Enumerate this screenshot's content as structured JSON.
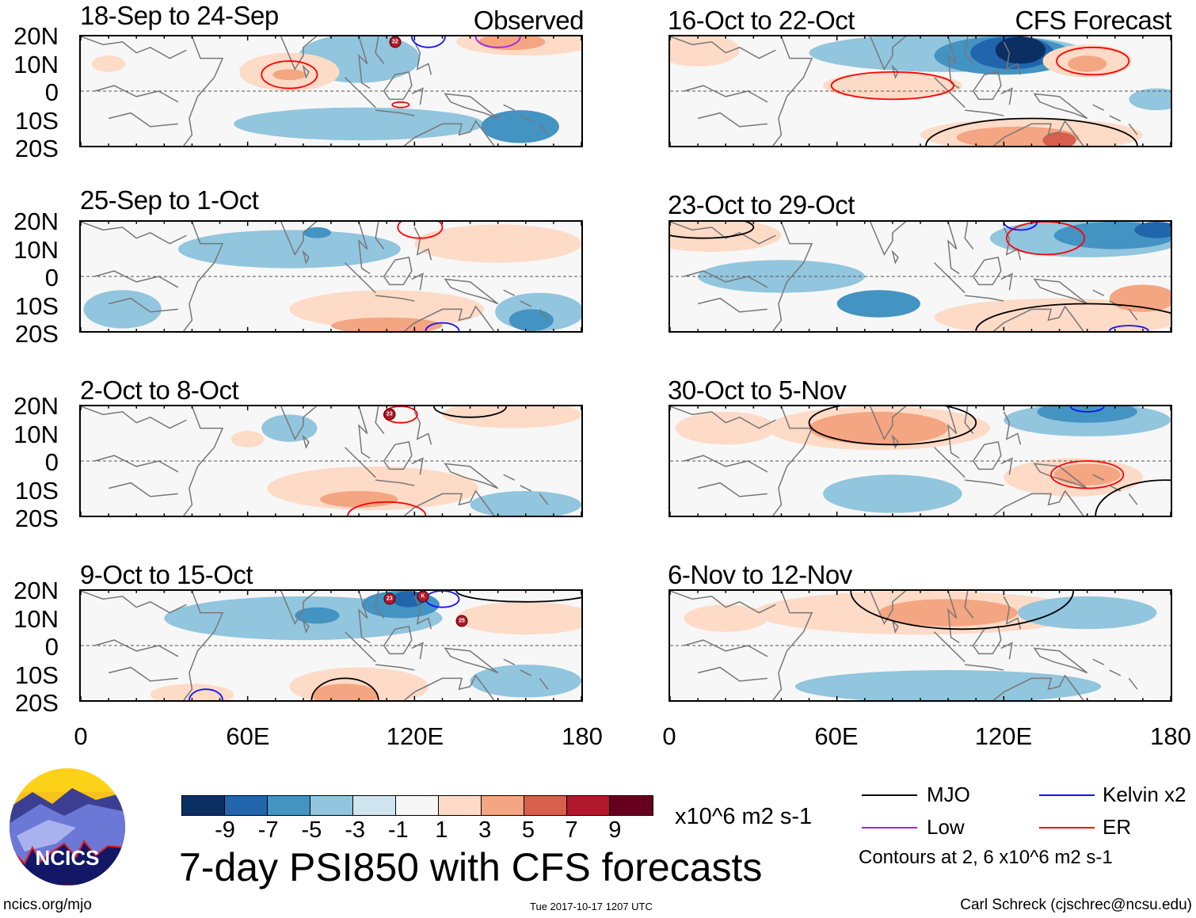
{
  "header": {
    "observed_label": "Observed",
    "forecast_label": "CFS Forecast"
  },
  "axes": {
    "lat_labels": [
      "20N",
      "10N",
      "0",
      "10S",
      "20S"
    ],
    "lon_labels": [
      "0",
      "60E",
      "120E",
      "180"
    ],
    "lon_range": [
      0,
      180
    ],
    "lat_range": [
      -20,
      20
    ]
  },
  "colors": {
    "bins": [
      "#0b2f63",
      "#2166ac",
      "#4393c3",
      "#92c5de",
      "#d1e5f0",
      "#f7f7f7",
      "#fddbc7",
      "#f4a582",
      "#d6604d",
      "#b2182b",
      "#67001f"
    ],
    "contours": {
      "MJO": "#000000",
      "Kelvin": "#1010ff",
      "Low": "#a020f0",
      "ER": "#ff0000"
    },
    "land": "#777777"
  },
  "panels": [
    {
      "title": "18-Sep to 24-Sep",
      "column": "left",
      "blobs": [
        {
          "lon": 100,
          "lat": 12,
          "rl": 22,
          "rb": 9,
          "v": -3
        },
        {
          "lon": 75,
          "lat": 7,
          "rl": 18,
          "rb": 7,
          "v": 3
        },
        {
          "lon": 75,
          "lat": 6,
          "rl": 6,
          "rb": 2,
          "v": 5
        },
        {
          "lon": 160,
          "lat": 18,
          "rl": 25,
          "rb": 5,
          "v": 3
        },
        {
          "lon": 155,
          "lat": 18,
          "rl": 12,
          "rb": 3,
          "v": 5
        },
        {
          "lon": 100,
          "lat": -12,
          "rl": 45,
          "rb": 6,
          "v": -3
        },
        {
          "lon": 158,
          "lat": -13,
          "rl": 14,
          "rb": 6,
          "v": -5
        },
        {
          "lon": 10,
          "lat": 10,
          "rl": 6,
          "rb": 3,
          "v": 3
        }
      ],
      "contours": [
        {
          "type": "ER",
          "lon": 75,
          "lat": 6,
          "rl": 10,
          "rb": 5
        },
        {
          "type": "ER",
          "lon": 115,
          "lat": -5,
          "rl": 3,
          "rb": 1
        },
        {
          "type": "Kelvin",
          "lon": 125,
          "lat": 20,
          "rl": 6,
          "rb": 4
        },
        {
          "type": "Low",
          "lon": 150,
          "lat": 20,
          "rl": 8,
          "rb": 4
        }
      ],
      "storms": [
        {
          "label": "22",
          "lon": 113,
          "lat": 18
        }
      ]
    },
    {
      "title": "16-Oct to 22-Oct",
      "column": "right",
      "blobs": [
        {
          "lon": 100,
          "lat": 14,
          "rl": 50,
          "rb": 7,
          "v": -3
        },
        {
          "lon": 120,
          "lat": 13,
          "rl": 25,
          "rb": 7,
          "v": -5
        },
        {
          "lon": 123,
          "lat": 14,
          "rl": 15,
          "rb": 6,
          "v": -7
        },
        {
          "lon": 126,
          "lat": 15,
          "rl": 9,
          "rb": 5,
          "v": -9
        },
        {
          "lon": 80,
          "lat": 2,
          "rl": 25,
          "rb": 5,
          "v": 3
        },
        {
          "lon": 150,
          "lat": 11,
          "rl": 16,
          "rb": 6,
          "v": 3
        },
        {
          "lon": 150,
          "lat": 10,
          "rl": 7,
          "rb": 3,
          "v": 5
        },
        {
          "lon": 130,
          "lat": -16,
          "rl": 40,
          "rb": 6,
          "v": 3
        },
        {
          "lon": 125,
          "lat": -17,
          "rl": 22,
          "rb": 4,
          "v": 5
        },
        {
          "lon": 140,
          "lat": -18,
          "rl": 6,
          "rb": 3,
          "v": 7
        },
        {
          "lon": 10,
          "lat": 15,
          "rl": 15,
          "rb": 6,
          "v": 3
        },
        {
          "lon": 175,
          "lat": -3,
          "rl": 10,
          "rb": 4,
          "v": -3
        }
      ],
      "contours": [
        {
          "type": "ER",
          "lon": 80,
          "lat": 2,
          "rl": 22,
          "rb": 5
        },
        {
          "type": "ER",
          "lon": 152,
          "lat": 11,
          "rl": 13,
          "rb": 5
        },
        {
          "type": "MJO",
          "lon": 130,
          "lat": -20,
          "rl": 38,
          "rb": 10
        }
      ],
      "storms": []
    },
    {
      "title": "25-Sep to 1-Oct",
      "column": "left",
      "blobs": [
        {
          "lon": 75,
          "lat": 10,
          "rl": 40,
          "rb": 7,
          "v": -3
        },
        {
          "lon": 85,
          "lat": 16,
          "rl": 5,
          "rb": 2,
          "v": -5
        },
        {
          "lon": 150,
          "lat": 12,
          "rl": 30,
          "rb": 7,
          "v": 3
        },
        {
          "lon": 110,
          "lat": -12,
          "rl": 35,
          "rb": 7,
          "v": 3
        },
        {
          "lon": 110,
          "lat": -18,
          "rl": 20,
          "rb": 3,
          "v": 5
        },
        {
          "lon": 165,
          "lat": -13,
          "rl": 16,
          "rb": 7,
          "v": -3
        },
        {
          "lon": 162,
          "lat": -16,
          "rl": 8,
          "rb": 4,
          "v": -5
        },
        {
          "lon": 15,
          "lat": -12,
          "rl": 14,
          "rb": 7,
          "v": -3
        }
      ],
      "contours": [
        {
          "type": "ER",
          "lon": 122,
          "lat": 18,
          "rl": 8,
          "rb": 4
        },
        {
          "type": "Kelvin",
          "lon": 130,
          "lat": -20,
          "rl": 6,
          "rb": 3
        }
      ],
      "storms": []
    },
    {
      "title": "23-Oct to 29-Oct",
      "column": "right",
      "blobs": [
        {
          "lon": 150,
          "lat": 14,
          "rl": 35,
          "rb": 7,
          "v": -3
        },
        {
          "lon": 160,
          "lat": 15,
          "rl": 22,
          "rb": 5,
          "v": -5
        },
        {
          "lon": 175,
          "lat": 17,
          "rl": 8,
          "rb": 3,
          "v": -7
        },
        {
          "lon": 15,
          "lat": 15,
          "rl": 25,
          "rb": 6,
          "v": 3
        },
        {
          "lon": 140,
          "lat": -15,
          "rl": 45,
          "rb": 7,
          "v": 3
        },
        {
          "lon": 170,
          "lat": -8,
          "rl": 12,
          "rb": 5,
          "v": 5
        },
        {
          "lon": 75,
          "lat": -10,
          "rl": 15,
          "rb": 5,
          "v": -5
        },
        {
          "lon": 40,
          "lat": 0,
          "rl": 30,
          "rb": 6,
          "v": -3
        }
      ],
      "contours": [
        {
          "type": "ER",
          "lon": 135,
          "lat": 14,
          "rl": 14,
          "rb": 6
        },
        {
          "type": "MJO",
          "lon": 150,
          "lat": -20,
          "rl": 40,
          "rb": 10
        },
        {
          "type": "MJO",
          "lon": 12,
          "lat": 18,
          "rl": 18,
          "rb": 4
        },
        {
          "type": "Kelvin",
          "lon": 126,
          "lat": 20,
          "rl": 6,
          "rb": 3
        },
        {
          "type": "Kelvin",
          "lon": 165,
          "lat": -20,
          "rl": 7,
          "rb": 2
        }
      ],
      "storms": []
    },
    {
      "title": "2-Oct to 8-Oct",
      "column": "left",
      "blobs": [
        {
          "lon": 155,
          "lat": 17,
          "rl": 25,
          "rb": 5,
          "v": 3
        },
        {
          "lon": 105,
          "lat": -10,
          "rl": 38,
          "rb": 8,
          "v": 3
        },
        {
          "lon": 100,
          "lat": -14,
          "rl": 14,
          "rb": 3,
          "v": 5
        },
        {
          "lon": 160,
          "lat": -16,
          "rl": 20,
          "rb": 5,
          "v": -3
        },
        {
          "lon": 75,
          "lat": 12,
          "rl": 10,
          "rb": 5,
          "v": -3
        },
        {
          "lon": 60,
          "lat": 8,
          "rl": 6,
          "rb": 3,
          "v": 3
        }
      ],
      "contours": [
        {
          "type": "ER",
          "lon": 110,
          "lat": -20,
          "rl": 14,
          "rb": 5
        },
        {
          "type": "ER",
          "lon": 115,
          "lat": 17,
          "rl": 6,
          "rb": 3
        },
        {
          "type": "MJO",
          "lon": 140,
          "lat": 20,
          "rl": 13,
          "rb": 4
        }
      ],
      "storms": [
        {
          "label": "23",
          "lon": 111,
          "lat": 17
        }
      ]
    },
    {
      "title": "30-Oct to 5-Nov",
      "column": "right",
      "blobs": [
        {
          "lon": 75,
          "lat": 12,
          "rl": 40,
          "rb": 8,
          "v": 3
        },
        {
          "lon": 75,
          "lat": 12,
          "rl": 25,
          "rb": 6,
          "v": 5
        },
        {
          "lon": 150,
          "lat": 15,
          "rl": 30,
          "rb": 6,
          "v": -3
        },
        {
          "lon": 150,
          "lat": 18,
          "rl": 18,
          "rb": 4,
          "v": -5
        },
        {
          "lon": 145,
          "lat": -6,
          "rl": 25,
          "rb": 7,
          "v": 3
        },
        {
          "lon": 150,
          "lat": -5,
          "rl": 12,
          "rb": 4,
          "v": 5
        },
        {
          "lon": 80,
          "lat": -12,
          "rl": 25,
          "rb": 7,
          "v": -3
        },
        {
          "lon": 20,
          "lat": 12,
          "rl": 18,
          "rb": 6,
          "v": 3
        }
      ],
      "contours": [
        {
          "type": "MJO",
          "lon": 80,
          "lat": 14,
          "rl": 30,
          "rb": 8
        },
        {
          "type": "ER",
          "lon": 150,
          "lat": -5,
          "rl": 13,
          "rb": 5
        },
        {
          "type": "MJO",
          "lon": 178,
          "lat": -20,
          "rl": 25,
          "rb": 13
        },
        {
          "type": "Kelvin",
          "lon": 150,
          "lat": 20,
          "rl": 6,
          "rb": 2
        }
      ],
      "storms": []
    },
    {
      "title": "9-Oct to 15-Oct",
      "column": "left",
      "blobs": [
        {
          "lon": 80,
          "lat": 10,
          "rl": 50,
          "rb": 8,
          "v": -3
        },
        {
          "lon": 85,
          "lat": 11,
          "rl": 8,
          "rb": 3,
          "v": -5
        },
        {
          "lon": 115,
          "lat": 15,
          "rl": 14,
          "rb": 5,
          "v": -5
        },
        {
          "lon": 118,
          "lat": 17,
          "rl": 6,
          "rb": 3,
          "v": -7
        },
        {
          "lon": 160,
          "lat": 10,
          "rl": 25,
          "rb": 6,
          "v": 3
        },
        {
          "lon": 100,
          "lat": -15,
          "rl": 25,
          "rb": 7,
          "v": 3
        },
        {
          "lon": 95,
          "lat": -18,
          "rl": 12,
          "rb": 4,
          "v": 5
        },
        {
          "lon": 40,
          "lat": -18,
          "rl": 15,
          "rb": 4,
          "v": 3
        },
        {
          "lon": 160,
          "lat": -13,
          "rl": 20,
          "rb": 6,
          "v": -3
        }
      ],
      "contours": [
        {
          "type": "MJO",
          "lon": 95,
          "lat": -20,
          "rl": 12,
          "rb": 8
        },
        {
          "type": "Kelvin",
          "lon": 45,
          "lat": -20,
          "rl": 6,
          "rb": 4
        },
        {
          "type": "MJO",
          "lon": 160,
          "lat": 20,
          "rl": 25,
          "rb": 4
        },
        {
          "type": "Kelvin",
          "lon": 130,
          "lat": 17,
          "rl": 6,
          "rb": 3
        }
      ],
      "storms": [
        {
          "label": "23",
          "lon": 111,
          "lat": 17
        },
        {
          "label": "K",
          "lon": 123,
          "lat": 18
        },
        {
          "label": "25",
          "lon": 137,
          "lat": 9
        }
      ]
    },
    {
      "title": "6-Nov to 12-Nov",
      "column": "right",
      "blobs": [
        {
          "lon": 90,
          "lat": 12,
          "rl": 60,
          "rb": 8,
          "v": 3
        },
        {
          "lon": 100,
          "lat": 12,
          "rl": 25,
          "rb": 5,
          "v": 5
        },
        {
          "lon": 150,
          "lat": 12,
          "rl": 25,
          "rb": 6,
          "v": -3
        },
        {
          "lon": 100,
          "lat": -15,
          "rl": 55,
          "rb": 6,
          "v": -3
        },
        {
          "lon": 20,
          "lat": 10,
          "rl": 15,
          "rb": 5,
          "v": 3
        }
      ],
      "contours": [
        {
          "type": "MJO",
          "lon": 105,
          "lat": 20,
          "rl": 40,
          "rb": 14
        }
      ],
      "storms": []
    }
  ],
  "colorbar": {
    "labels": [
      "-9",
      "-7",
      "-5",
      "-3",
      "-1",
      "1",
      "3",
      "5",
      "7",
      "9"
    ],
    "units": "x10^6 m2 s-1"
  },
  "main_title": "7-day PSI850 with CFS forecasts",
  "legend": {
    "items": [
      {
        "label": "MJO",
        "type": "MJO"
      },
      {
        "label": "Kelvin x2",
        "type": "Kelvin"
      },
      {
        "label": "Low",
        "type": "Low"
      },
      {
        "label": "ER",
        "type": "ER"
      }
    ],
    "note": "Contours at 2, 6 x10^6 m2 s-1"
  },
  "logo": {
    "text": "NCICS"
  },
  "footer": {
    "url": "ncics.org/mjo",
    "timestamp": "Tue 2017-10-17 1207 UTC",
    "credit": "Carl Schreck (cjschrec@ncsu.edu)"
  }
}
